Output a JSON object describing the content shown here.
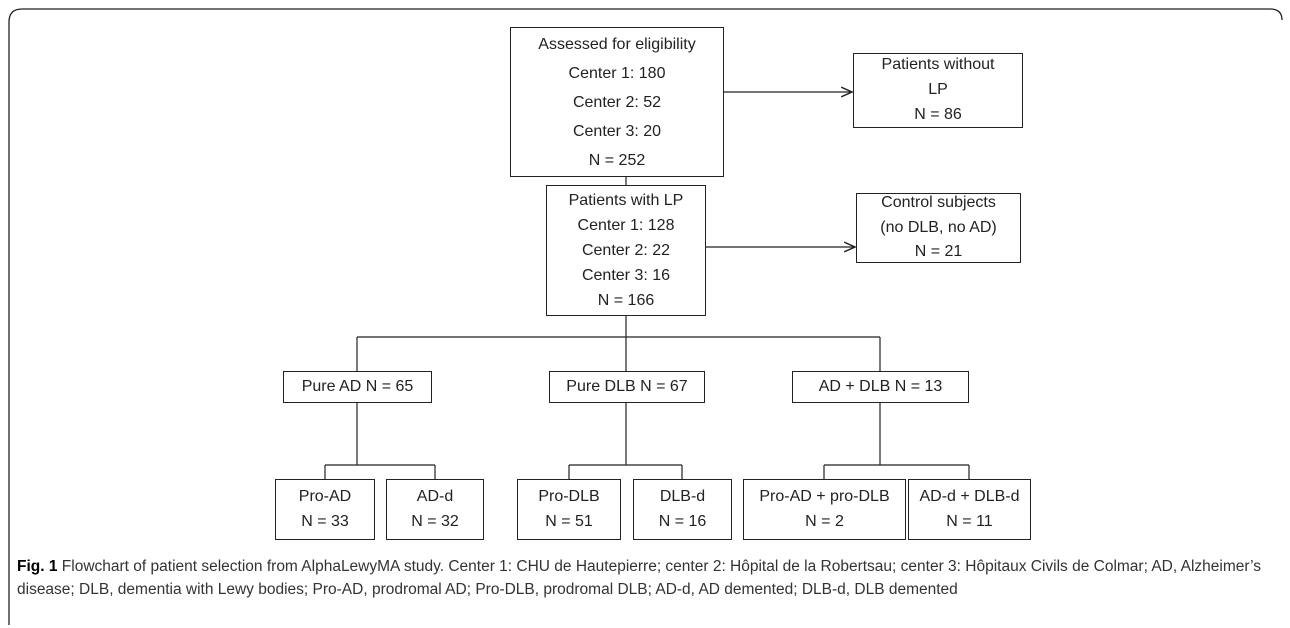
{
  "nodes": [
    {
      "lines": [
        "Assessed for eligibility",
        "Center 1: 180",
        "Center 2: 52",
        "Center 3: 20",
        "N = 252"
      ]
    },
    {
      "lines": [
        "Patients without",
        "LP",
        "N = 86"
      ]
    },
    {
      "lines": [
        "Patients with LP",
        "Center 1: 128",
        "Center 2: 22",
        "Center 3: 16",
        "N = 166"
      ]
    },
    {
      "lines": [
        "Control subjects",
        "(no DLB, no AD)",
        "N = 21"
      ]
    },
    {
      "lines": [
        "Pure AD N = 65"
      ]
    },
    {
      "lines": [
        "Pure DLB N = 67"
      ]
    },
    {
      "lines": [
        "AD + DLB N = 13"
      ]
    },
    {
      "lines": [
        "Pro-AD",
        "N = 33"
      ]
    },
    {
      "lines": [
        "AD-d",
        "N = 32"
      ]
    },
    {
      "lines": [
        "Pro-DLB",
        "N = 51"
      ]
    },
    {
      "lines": [
        "DLB-d",
        "N = 16"
      ]
    },
    {
      "lines": [
        "Pro-AD + pro-DLB",
        "N = 2"
      ]
    },
    {
      "lines": [
        "AD-d + DLB-d",
        "N = 11"
      ]
    }
  ],
  "caption": {
    "label": "Fig. 1",
    "text": "Flowchart of patient selection from AlphaLewyMA study. Center 1: CHU de Hautepierre; center 2: Hôpital de la Robertsau; center 3: Hôpitaux Civils de Colmar; AD, Alzheimer’s disease; DLB, dementia with Lewy bodies; Pro-AD, prodromal AD; Pro-DLB, prodromal DLB; AD-d, AD demented; DLB-d, DLB demented"
  }
}
